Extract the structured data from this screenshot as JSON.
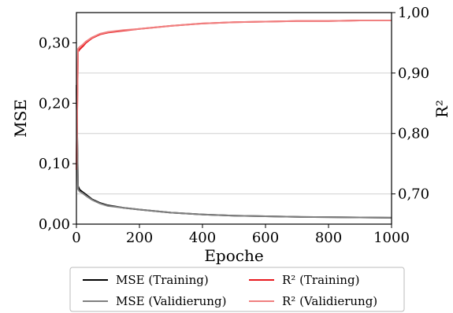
{
  "chart_data": {
    "type": "line",
    "xlabel": "Epoche",
    "ylabel_left": "MSE",
    "ylabel_right": "R²",
    "xlim": [
      0,
      1000
    ],
    "ylim_left": [
      0,
      0.35
    ],
    "ylim_right": [
      0.65,
      1.0
    ],
    "x_ticks": [
      0,
      200,
      400,
      600,
      800,
      1000
    ],
    "x_tick_labels": [
      "0",
      "200",
      "400",
      "600",
      "800",
      "1000"
    ],
    "y_left_ticks": [
      0,
      0.1,
      0.2,
      0.3
    ],
    "y_left_tick_labels": [
      "0,00",
      "0,10",
      "0,20",
      "0,30"
    ],
    "y_right_ticks": [
      0.7,
      0.8,
      0.9,
      1.0
    ],
    "y_right_tick_labels": [
      "0,70",
      "0,80",
      "0,90",
      "1,00"
    ],
    "grid": "horizontal at right-axis ticks",
    "legend_position": "below plot",
    "series": [
      {
        "name": "MSE (Training)",
        "axis": "left",
        "color": "#000000",
        "x": [
          0,
          5,
          10,
          20,
          30,
          50,
          75,
          100,
          150,
          200,
          300,
          400,
          500,
          600,
          700,
          800,
          900,
          1000
        ],
        "values": [
          0.23,
          0.063,
          0.057,
          0.053,
          0.049,
          0.041,
          0.035,
          0.031,
          0.027,
          0.024,
          0.019,
          0.016,
          0.014,
          0.013,
          0.012,
          0.0115,
          0.011,
          0.0105
        ]
      },
      {
        "name": "MSE (Validierung)",
        "axis": "left",
        "color": "#808080",
        "x": [
          0,
          5,
          10,
          20,
          30,
          50,
          75,
          100,
          150,
          200,
          300,
          400,
          500,
          600,
          700,
          800,
          900,
          1000
        ],
        "values": [
          0.23,
          0.058,
          0.054,
          0.051,
          0.047,
          0.04,
          0.034,
          0.03,
          0.027,
          0.024,
          0.019,
          0.016,
          0.014,
          0.013,
          0.012,
          0.0115,
          0.011,
          0.0105
        ]
      },
      {
        "name": "R² (Training)",
        "axis": "right",
        "color": "#e8191e",
        "x": [
          0,
          5,
          10,
          20,
          30,
          50,
          75,
          100,
          150,
          200,
          300,
          400,
          500,
          600,
          700,
          800,
          900,
          1000
        ],
        "values": [
          0.74,
          0.935,
          0.939,
          0.944,
          0.95,
          0.958,
          0.964,
          0.967,
          0.97,
          0.973,
          0.978,
          0.982,
          0.984,
          0.985,
          0.986,
          0.986,
          0.987,
          0.987
        ]
      },
      {
        "name": "R² (Validierung)",
        "axis": "right",
        "color": "#f08080",
        "x": [
          0,
          5,
          10,
          20,
          30,
          50,
          75,
          100,
          150,
          200,
          300,
          400,
          500,
          600,
          700,
          800,
          900,
          1000
        ],
        "values": [
          0.74,
          0.94,
          0.943,
          0.947,
          0.952,
          0.959,
          0.965,
          0.968,
          0.971,
          0.973,
          0.978,
          0.982,
          0.984,
          0.985,
          0.986,
          0.986,
          0.987,
          0.987
        ]
      }
    ]
  }
}
